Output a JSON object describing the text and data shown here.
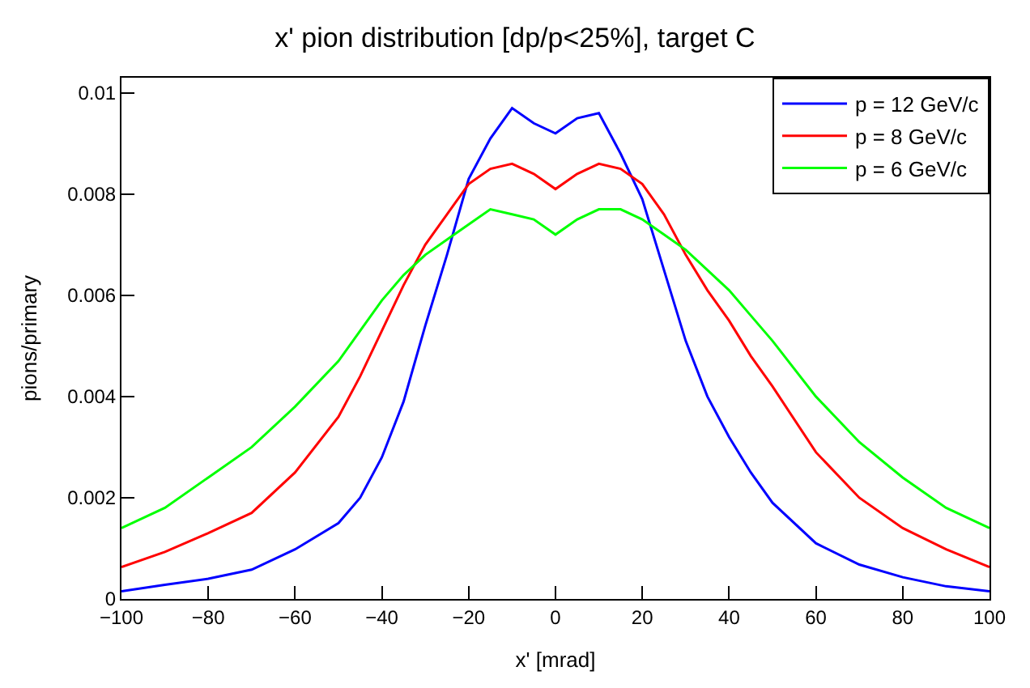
{
  "chart_data": {
    "type": "line",
    "title": "x' pion distribution [dp/p<25%], target C",
    "xlabel": "x' [mrad]",
    "ylabel": "pions/primary",
    "x": [
      -100,
      -90,
      -80,
      -70,
      -60,
      -50,
      -45,
      -40,
      -35,
      -30,
      -25,
      -20,
      -15,
      -10,
      -5,
      0,
      5,
      10,
      15,
      20,
      25,
      30,
      35,
      40,
      45,
      50,
      60,
      70,
      80,
      90,
      100
    ],
    "series": [
      {
        "name": "p = 12 GeV/c",
        "color": "#0000ff",
        "values": [
          0.00015,
          0.00028,
          0.0004,
          0.00058,
          0.00098,
          0.0015,
          0.002,
          0.0028,
          0.0039,
          0.0054,
          0.0068,
          0.0083,
          0.0091,
          0.0097,
          0.0094,
          0.0092,
          0.0095,
          0.0096,
          0.0088,
          0.0079,
          0.0065,
          0.0051,
          0.004,
          0.0032,
          0.0025,
          0.0019,
          0.0011,
          0.00068,
          0.00043,
          0.00025,
          0.00015
        ]
      },
      {
        "name": "p = 8 GeV/c",
        "color": "#ff0000",
        "values": [
          0.00063,
          0.00093,
          0.0013,
          0.0017,
          0.0025,
          0.0036,
          0.0044,
          0.0053,
          0.0062,
          0.007,
          0.0076,
          0.0082,
          0.0085,
          0.0086,
          0.0084,
          0.0081,
          0.0084,
          0.0086,
          0.0085,
          0.0082,
          0.0076,
          0.0068,
          0.0061,
          0.0055,
          0.0048,
          0.0042,
          0.0029,
          0.002,
          0.0014,
          0.00098,
          0.00063
        ]
      },
      {
        "name": "p = 6 GeV/c",
        "color": "#00ff00",
        "values": [
          0.0014,
          0.0018,
          0.0024,
          0.003,
          0.0038,
          0.0047,
          0.0053,
          0.0059,
          0.0064,
          0.0068,
          0.0071,
          0.0074,
          0.0077,
          0.0076,
          0.0075,
          0.0072,
          0.0075,
          0.0077,
          0.0077,
          0.0075,
          0.0072,
          0.0069,
          0.0065,
          0.0061,
          0.0056,
          0.0051,
          0.004,
          0.0031,
          0.0024,
          0.0018,
          0.0014
        ]
      }
    ],
    "xlim": [
      -100,
      100
    ],
    "xticks": [
      {
        "value": -100,
        "label": "−100"
      },
      {
        "value": -80,
        "label": "−80"
      },
      {
        "value": -60,
        "label": "−60"
      },
      {
        "value": -40,
        "label": "−40"
      },
      {
        "value": -20,
        "label": "−20"
      },
      0,
      20,
      40,
      60,
      80,
      100
    ],
    "ylim": [
      0,
      0.0103
    ],
    "yticks": [
      0,
      0.002,
      0.004,
      0.006,
      0.008,
      0.01
    ],
    "legend": "top right",
    "marker": "none",
    "line_style": "solid"
  }
}
